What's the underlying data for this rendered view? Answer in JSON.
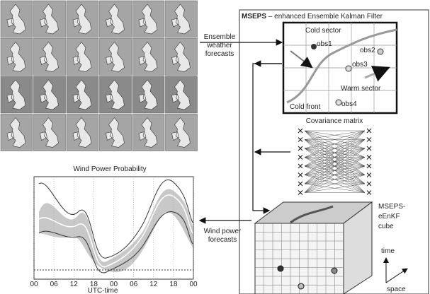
{
  "maps": {
    "caption": [
      "Ensemble",
      "weather",
      "forecasts"
    ]
  },
  "filter": {
    "title_bold": "MSEPS",
    "title_rest": " – enhanced Ensemble Kalman Filter",
    "cold_sector": "Cold sector",
    "warm_sector": "Warm sector",
    "cold_front": "Cold front",
    "obs": [
      "obs1",
      "obs2",
      "obs3",
      "obs4"
    ]
  },
  "covariance": {
    "title": "Covariance matrix"
  },
  "cube": {
    "label": [
      "MSEPS-",
      "eEnKF",
      "cube"
    ],
    "time": "time",
    "space": "space"
  },
  "chart": {
    "title": "Wind Power Probability",
    "xticks": [
      "00",
      "06",
      "12",
      "18",
      "00",
      "06",
      "12",
      "18",
      "00"
    ],
    "xlabel": "UTC-time"
  },
  "output": {
    "caption": [
      "Wind power",
      "forecasts"
    ]
  }
}
